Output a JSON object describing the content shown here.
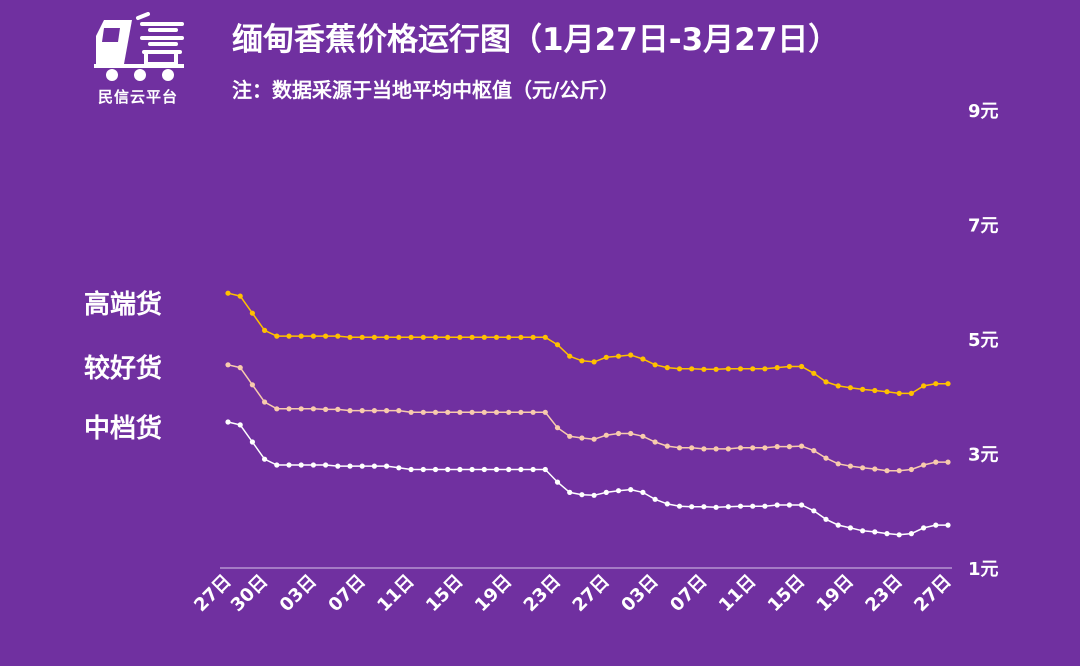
{
  "logo": {
    "name": "民信云平台",
    "icon": "truck-icon"
  },
  "title": "缅甸香蕉价格运行图（1月27日-3月27日）",
  "subtitle": "注：数据采源于当地平均中枢值（元/公斤）",
  "colors": {
    "background": "#7030a0",
    "high": "#ffc000",
    "good": "#f8cbad",
    "mid": "#ffffff",
    "axis": "#d9c6ea"
  },
  "chart_data": {
    "type": "line",
    "title": "缅甸香蕉价格运行图（1月27日-3月27日）",
    "ylabel": "元/公斤",
    "ylim": [
      1,
      9
    ],
    "yticks": [
      1,
      3,
      5,
      7,
      9
    ],
    "ytick_labels": [
      "1元",
      "3元",
      "5元",
      "7元",
      "9元"
    ],
    "grid": false,
    "legend_position": "left",
    "x": [
      "1月27日",
      "1月28日",
      "1月29日",
      "1月30日",
      "1月31日",
      "2月1日",
      "2月2日",
      "2月3日",
      "2月4日",
      "2月5日",
      "2月6日",
      "2月7日",
      "2月8日",
      "2月9日",
      "2月10日",
      "2月11日",
      "2月12日",
      "2月13日",
      "2月14日",
      "2月15日",
      "2月16日",
      "2月17日",
      "2月18日",
      "2月19日",
      "2月20日",
      "2月21日",
      "2月22日",
      "2月23日",
      "2月24日",
      "2月25日",
      "2月26日",
      "2月27日",
      "2月28日",
      "3月1日",
      "3月2日",
      "3月3日",
      "3月4日",
      "3月5日",
      "3月6日",
      "3月7日",
      "3月8日",
      "3月9日",
      "3月10日",
      "3月11日",
      "3月12日",
      "3月13日",
      "3月14日",
      "3月15日",
      "3月16日",
      "3月17日",
      "3月18日",
      "3月19日",
      "3月20日",
      "3月21日",
      "3月22日",
      "3月23日",
      "3月24日",
      "3月25日",
      "3月26日",
      "3月27日"
    ],
    "xtick_labels": [
      "27日",
      "30日",
      "03日",
      "07日",
      "11日",
      "15日",
      "19日",
      "23日",
      "27日",
      "03日",
      "07日",
      "11日",
      "15日",
      "19日",
      "23日",
      "27日"
    ],
    "xtick_index": [
      0,
      3,
      7,
      11,
      15,
      19,
      23,
      27,
      31,
      35,
      39,
      43,
      47,
      51,
      55,
      59
    ],
    "series": [
      {
        "name": "高端货",
        "values": [
          5.8,
          5.75,
          5.45,
          5.15,
          5.05,
          5.05,
          5.05,
          5.05,
          5.05,
          5.05,
          5.03,
          5.03,
          5.03,
          5.03,
          5.03,
          5.03,
          5.03,
          5.03,
          5.03,
          5.03,
          5.03,
          5.03,
          5.03,
          5.03,
          5.03,
          5.03,
          5.03,
          4.9,
          4.7,
          4.62,
          4.6,
          4.68,
          4.7,
          4.72,
          4.65,
          4.55,
          4.5,
          4.48,
          4.48,
          4.47,
          4.47,
          4.48,
          4.48,
          4.48,
          4.48,
          4.5,
          4.52,
          4.52,
          4.4,
          4.25,
          4.18,
          4.15,
          4.12,
          4.1,
          4.08,
          4.05,
          4.05,
          4.18,
          4.22,
          4.22
        ]
      },
      {
        "name": "较好货",
        "values": [
          4.55,
          4.5,
          4.2,
          3.9,
          3.78,
          3.78,
          3.78,
          3.78,
          3.77,
          3.77,
          3.75,
          3.75,
          3.75,
          3.75,
          3.75,
          3.72,
          3.72,
          3.72,
          3.72,
          3.72,
          3.72,
          3.72,
          3.72,
          3.72,
          3.72,
          3.72,
          3.72,
          3.45,
          3.3,
          3.27,
          3.25,
          3.32,
          3.35,
          3.35,
          3.3,
          3.2,
          3.13,
          3.1,
          3.1,
          3.08,
          3.08,
          3.08,
          3.1,
          3.1,
          3.1,
          3.12,
          3.12,
          3.13,
          3.05,
          2.92,
          2.82,
          2.78,
          2.75,
          2.73,
          2.7,
          2.7,
          2.72,
          2.8,
          2.85,
          2.85
        ]
      },
      {
        "name": "中档货",
        "values": [
          3.55,
          3.5,
          3.2,
          2.9,
          2.8,
          2.8,
          2.8,
          2.8,
          2.8,
          2.78,
          2.78,
          2.78,
          2.78,
          2.78,
          2.75,
          2.72,
          2.72,
          2.72,
          2.72,
          2.72,
          2.72,
          2.72,
          2.72,
          2.72,
          2.72,
          2.72,
          2.72,
          2.5,
          2.32,
          2.28,
          2.27,
          2.32,
          2.35,
          2.37,
          2.32,
          2.2,
          2.12,
          2.08,
          2.07,
          2.07,
          2.06,
          2.07,
          2.08,
          2.08,
          2.08,
          2.1,
          2.1,
          2.1,
          2.0,
          1.85,
          1.75,
          1.7,
          1.65,
          1.63,
          1.6,
          1.58,
          1.6,
          1.7,
          1.75,
          1.75
        ]
      }
    ]
  }
}
